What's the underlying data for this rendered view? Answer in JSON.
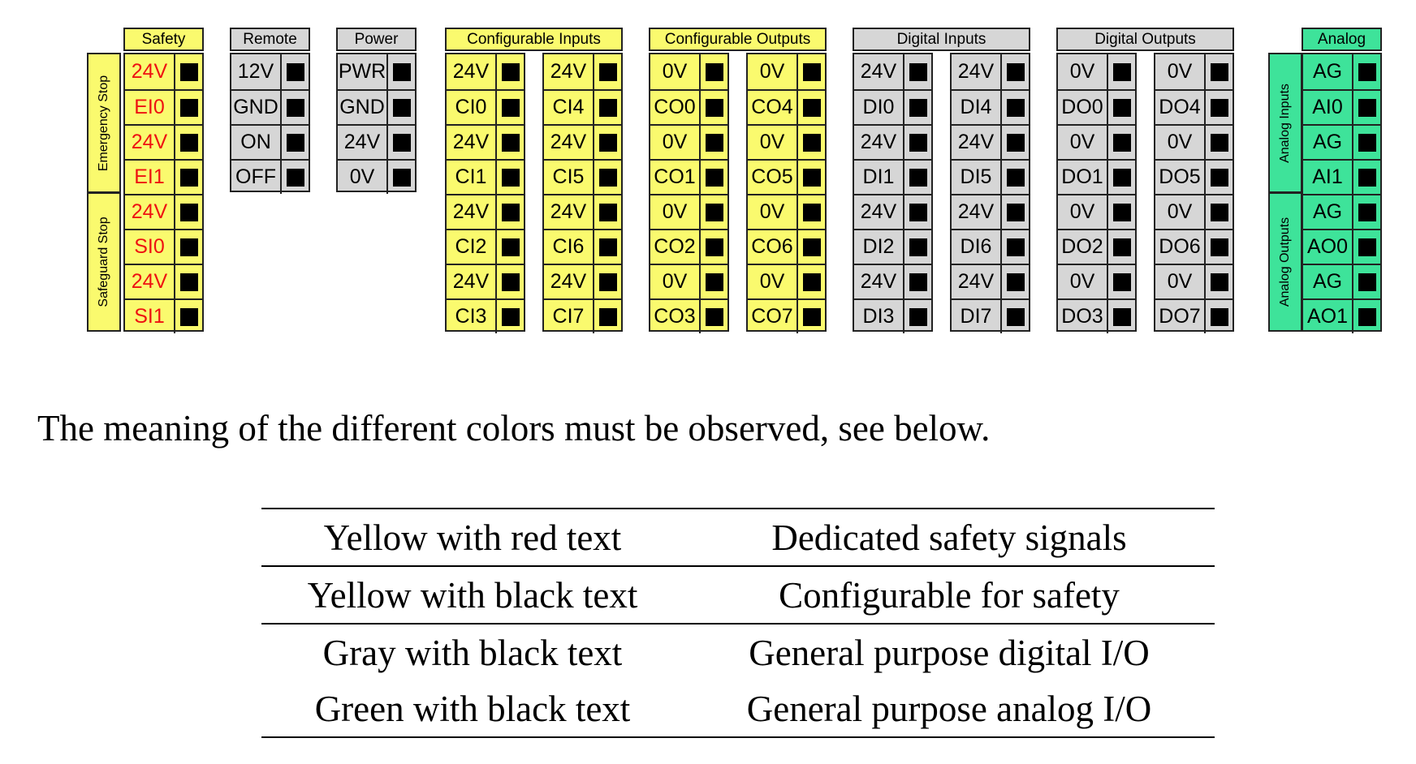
{
  "colors": {
    "yellow": "#fafa6e",
    "gray": "#d6d6d6",
    "green": "#3ee39a",
    "red_text": "#ee1111",
    "terminal": "#000000"
  },
  "groups": [
    {
      "header": "Safety",
      "color": "yellow",
      "columns": [
        [
          {
            "text": "24V",
            "red": true
          },
          {
            "text": "EI0",
            "red": true
          },
          {
            "text": "24V",
            "red": true
          },
          {
            "text": "EI1",
            "red": true
          },
          {
            "text": "24V",
            "red": true
          },
          {
            "text": "SI0",
            "red": true
          },
          {
            "text": "24V",
            "red": true
          },
          {
            "text": "SI1",
            "red": true
          }
        ]
      ],
      "side_labels": [
        "Emergency Stop",
        "Safeguard Stop"
      ]
    },
    {
      "header": "Remote",
      "color": "gray",
      "columns": [
        [
          {
            "text": "12V"
          },
          {
            "text": "GND"
          },
          {
            "text": "ON"
          },
          {
            "text": "OFF"
          }
        ]
      ]
    },
    {
      "header": "Power",
      "color": "gray",
      "columns": [
        [
          {
            "text": "PWR"
          },
          {
            "text": "GND"
          },
          {
            "text": "24V"
          },
          {
            "text": "0V"
          }
        ]
      ]
    },
    {
      "header": "Configurable Inputs",
      "color": "yellow",
      "columns": [
        [
          {
            "text": "24V"
          },
          {
            "text": "CI0"
          },
          {
            "text": "24V"
          },
          {
            "text": "CI1"
          },
          {
            "text": "24V"
          },
          {
            "text": "CI2"
          },
          {
            "text": "24V"
          },
          {
            "text": "CI3"
          }
        ],
        [
          {
            "text": "24V"
          },
          {
            "text": "CI4"
          },
          {
            "text": "24V"
          },
          {
            "text": "CI5"
          },
          {
            "text": "24V"
          },
          {
            "text": "CI6"
          },
          {
            "text": "24V"
          },
          {
            "text": "CI7"
          }
        ]
      ]
    },
    {
      "header": "Configurable Outputs",
      "color": "yellow",
      "columns": [
        [
          {
            "text": "0V"
          },
          {
            "text": "CO0"
          },
          {
            "text": "0V"
          },
          {
            "text": "CO1"
          },
          {
            "text": "0V"
          },
          {
            "text": "CO2"
          },
          {
            "text": "0V"
          },
          {
            "text": "CO3"
          }
        ],
        [
          {
            "text": "0V"
          },
          {
            "text": "CO4"
          },
          {
            "text": "0V"
          },
          {
            "text": "CO5"
          },
          {
            "text": "0V"
          },
          {
            "text": "CO6"
          },
          {
            "text": "0V"
          },
          {
            "text": "CO7"
          }
        ]
      ]
    },
    {
      "header": "Digital Inputs",
      "color": "gray",
      "columns": [
        [
          {
            "text": "24V"
          },
          {
            "text": "DI0"
          },
          {
            "text": "24V"
          },
          {
            "text": "DI1"
          },
          {
            "text": "24V"
          },
          {
            "text": "DI2"
          },
          {
            "text": "24V"
          },
          {
            "text": "DI3"
          }
        ],
        [
          {
            "text": "24V"
          },
          {
            "text": "DI4"
          },
          {
            "text": "24V"
          },
          {
            "text": "DI5"
          },
          {
            "text": "24V"
          },
          {
            "text": "DI6"
          },
          {
            "text": "24V"
          },
          {
            "text": "DI7"
          }
        ]
      ]
    },
    {
      "header": "Digital Outputs",
      "color": "gray",
      "columns": [
        [
          {
            "text": "0V"
          },
          {
            "text": "DO0"
          },
          {
            "text": "0V"
          },
          {
            "text": "DO1"
          },
          {
            "text": "0V"
          },
          {
            "text": "DO2"
          },
          {
            "text": "0V"
          },
          {
            "text": "DO3"
          }
        ],
        [
          {
            "text": "0V"
          },
          {
            "text": "DO4"
          },
          {
            "text": "0V"
          },
          {
            "text": "DO5"
          },
          {
            "text": "0V"
          },
          {
            "text": "DO6"
          },
          {
            "text": "0V"
          },
          {
            "text": "DO7"
          }
        ]
      ]
    },
    {
      "header": "Analog",
      "color": "green",
      "columns": [
        [
          {
            "text": "AG"
          },
          {
            "text": "AI0"
          },
          {
            "text": "AG"
          },
          {
            "text": "AI1"
          },
          {
            "text": "AG"
          },
          {
            "text": "AO0"
          },
          {
            "text": "AG"
          },
          {
            "text": "AO1"
          }
        ]
      ],
      "side_labels": [
        "Analog Inputs",
        "Analog Outputs"
      ]
    }
  ],
  "note": "The meaning of the different colors must be observed, see below.",
  "legend": [
    {
      "color_desc": "Yellow with red text",
      "meaning": "Dedicated safety signals"
    },
    {
      "color_desc": "Yellow with black text",
      "meaning": "Configurable for safety"
    },
    {
      "color_desc": "Gray with black text",
      "meaning": "General purpose digital I/O"
    },
    {
      "color_desc": "Green with black text",
      "meaning": "General purpose analog I/O"
    }
  ]
}
